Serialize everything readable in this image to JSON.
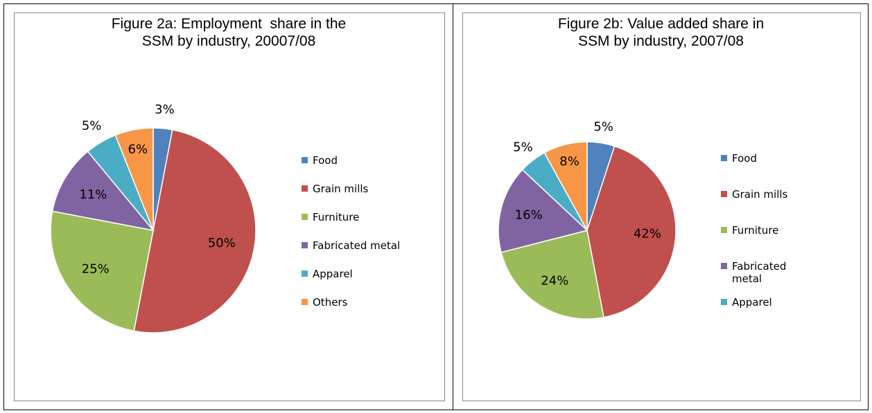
{
  "chart_data": [
    {
      "type": "pie",
      "title": [
        "Figure 2a: Employment  share in the",
        "SSM by industry, 20007/08"
      ],
      "categories": [
        "Food",
        "Grain mills",
        "Furniture",
        "Fabricated metal",
        "Apparel",
        "Others"
      ],
      "values": [
        3,
        50,
        25,
        11,
        5,
        6
      ],
      "value_labels": [
        "3%",
        "50%",
        "25%",
        "11%",
        "5%",
        "6%"
      ],
      "colors": [
        "#4f81bd",
        "#c0504d",
        "#9bbb59",
        "#8064a2",
        "#4bacc6",
        "#f79646"
      ],
      "legend": "right"
    },
    {
      "type": "pie",
      "title": [
        "Figure 2b: Value added share in",
        "SSM by industry, 2007/08"
      ],
      "categories": [
        "Food",
        "Grain mills",
        "Furniture",
        "Fabricated metal",
        "Apparel",
        null
      ],
      "values": [
        5,
        42,
        24,
        16,
        5,
        8
      ],
      "value_labels": [
        "5%",
        "42%",
        "24%",
        "16%",
        "5%",
        "8%"
      ],
      "colors": [
        "#4f81bd",
        "#c0504d",
        "#9bbb59",
        "#8064a2",
        "#4bacc6",
        "#f79646"
      ],
      "legend": "right"
    }
  ]
}
